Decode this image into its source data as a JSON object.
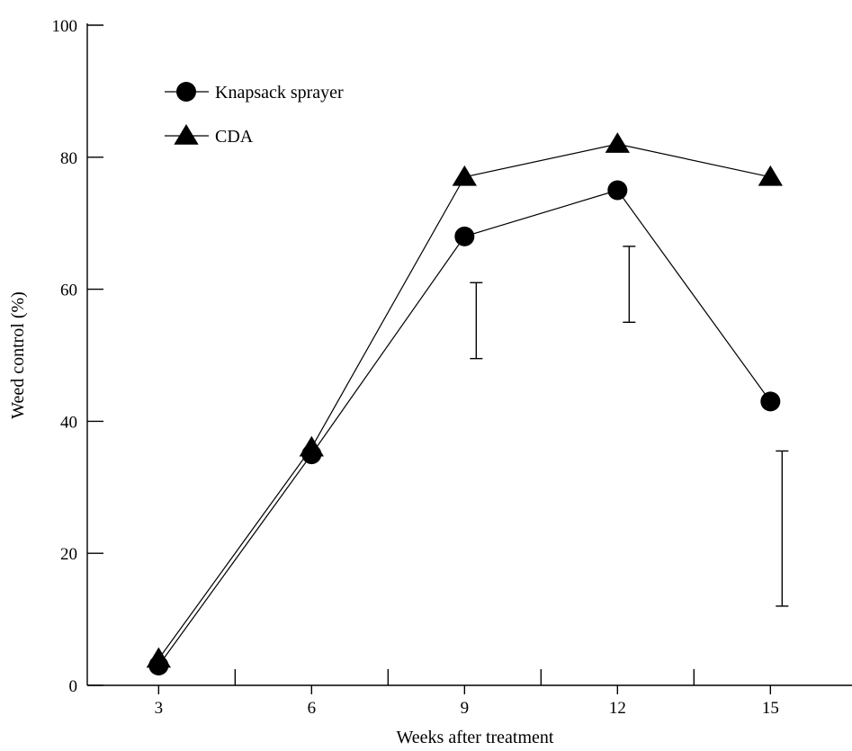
{
  "chart_data": {
    "type": "line",
    "title": "",
    "xlabel": "Weeks after treatment",
    "ylabel": "Weed control (%)",
    "x": [
      3,
      6,
      9,
      12,
      15
    ],
    "xlim": [
      1.6,
      16.6
    ],
    "ylim": [
      0,
      100
    ],
    "xticks": [
      3,
      6,
      9,
      12,
      15
    ],
    "yticks": [
      0,
      20,
      40,
      60,
      80,
      100
    ],
    "x_tick_labels": [
      "3",
      "6",
      "9",
      "12",
      "15"
    ],
    "y_tick_labels": [
      "0",
      "20",
      "40",
      "60",
      "80",
      "100"
    ],
    "grid": false,
    "legend_position": "top-left",
    "series": [
      {
        "name": "Knapsack sprayer",
        "marker": "circle",
        "values": [
          3,
          35,
          68,
          75,
          43
        ]
      },
      {
        "name": "CDA",
        "marker": "triangle",
        "values": [
          4,
          36,
          77,
          82,
          77
        ]
      }
    ],
    "error_bars": [
      {
        "x": 9,
        "low": 49.5,
        "high": 61
      },
      {
        "x": 12,
        "low": 55,
        "high": 66.5
      },
      {
        "x": 15,
        "low": 12,
        "high": 35.5
      }
    ],
    "color": "#000000"
  }
}
